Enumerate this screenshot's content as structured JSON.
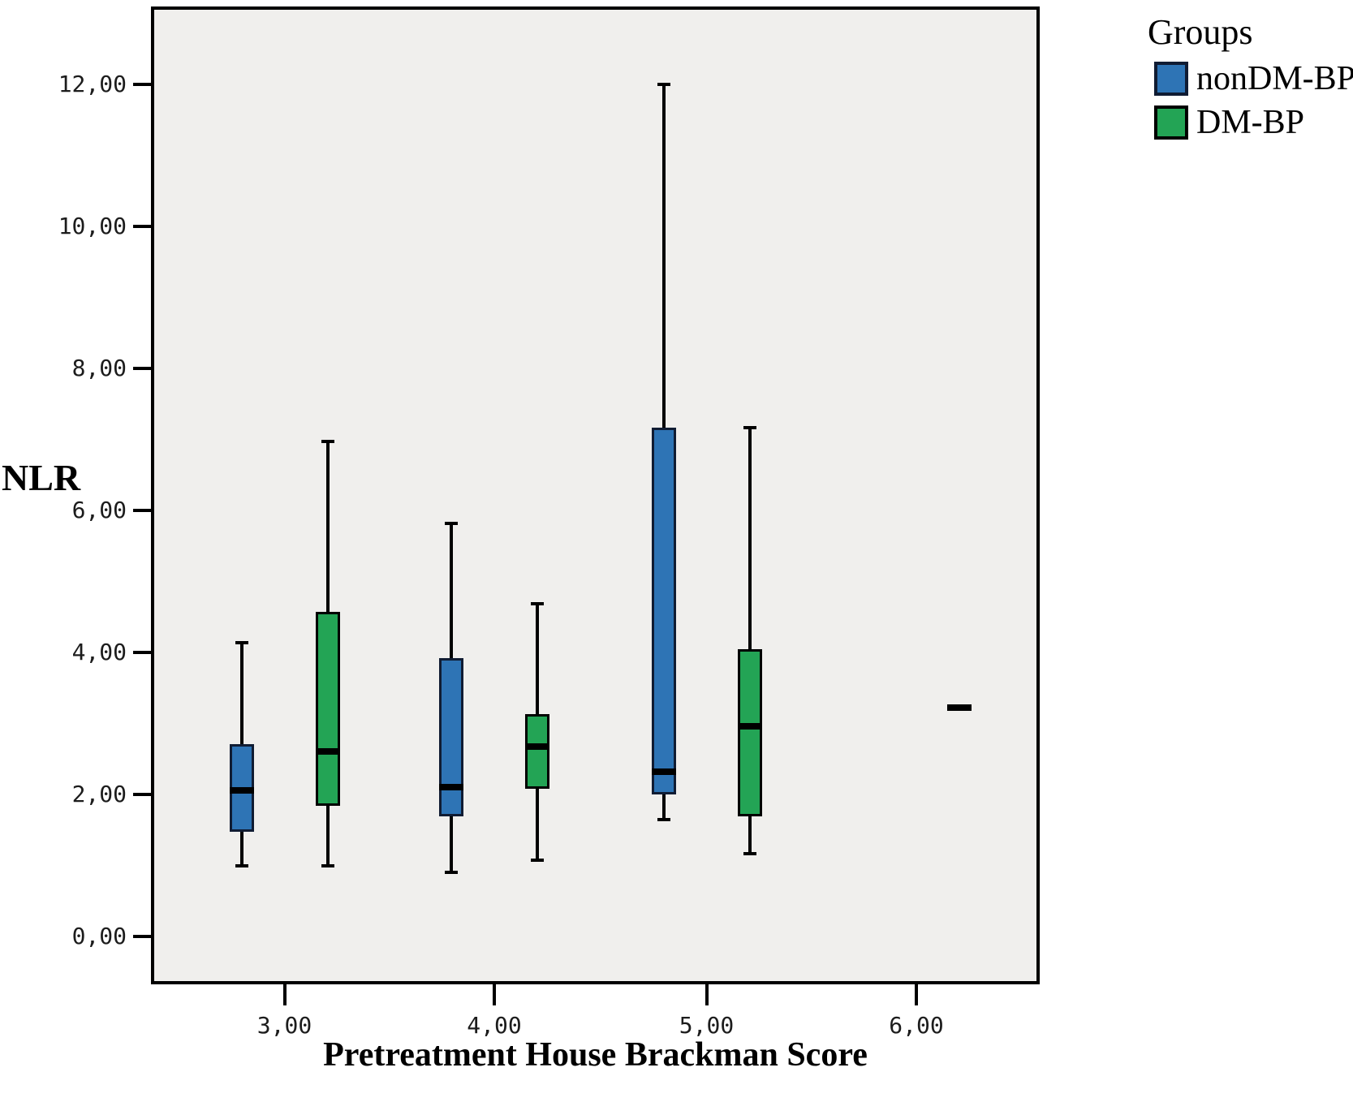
{
  "figure": {
    "ylabel": "NLR",
    "xlabel": "Pretreatment House Brackman Score"
  },
  "legend": {
    "title": "Groups",
    "entries": [
      {
        "label": "nonDM-BP",
        "fill": "#2E74B5",
        "border": "#101C33"
      },
      {
        "label": "DM-BP",
        "fill": "#23A455",
        "border": "#000000"
      }
    ]
  },
  "chart_data": {
    "type": "boxplot",
    "orientation": "vertical",
    "title": "",
    "xlabel": "Pretreatment House Brackman Score",
    "ylabel": "NLR",
    "ylim": [
      -0.7,
      13.1
    ],
    "grid": false,
    "plot_background": "#F0EFED",
    "legend_position": "top-right",
    "y_axis": {
      "ticks": [
        {
          "label": "0,00",
          "value": 0
        },
        {
          "label": "2,00",
          "value": 2
        },
        {
          "label": "4,00",
          "value": 4
        },
        {
          "label": "6,00",
          "value": 6
        },
        {
          "label": "8,00",
          "value": 8
        },
        {
          "label": "10,00",
          "value": 10
        },
        {
          "label": "12,00",
          "value": 12
        }
      ]
    },
    "categories": [
      "3,00",
      "4,00",
      "5,00",
      "6,00"
    ],
    "series": [
      {
        "name": "nonDM-BP",
        "fill": "#2E74B5",
        "border": "#101C33",
        "boxes": [
          {
            "category": "3,00",
            "low": 1.0,
            "q1": 1.48,
            "median": 2.06,
            "q3": 2.71,
            "high": 4.14
          },
          {
            "category": "4,00",
            "low": 0.9,
            "q1": 1.69,
            "median": 2.1,
            "q3": 3.92,
            "high": 5.82
          },
          {
            "category": "5,00",
            "low": 1.65,
            "q1": 2.0,
            "median": 2.32,
            "q3": 7.17,
            "high": 12.0
          }
        ]
      },
      {
        "name": "DM-BP",
        "fill": "#23A455",
        "border": "#000000",
        "boxes": [
          {
            "category": "3,00",
            "low": 1.0,
            "q1": 1.84,
            "median": 2.61,
            "q3": 4.57,
            "high": 6.97
          },
          {
            "category": "4,00",
            "low": 1.07,
            "q1": 2.08,
            "median": 2.67,
            "q3": 3.13,
            "high": 4.69
          },
          {
            "category": "5,00",
            "low": 1.17,
            "q1": 1.69,
            "median": 2.96,
            "q3": 4.05,
            "high": 7.17
          },
          {
            "category": "6,00",
            "median": 3.22,
            "single": true
          }
        ]
      }
    ]
  }
}
